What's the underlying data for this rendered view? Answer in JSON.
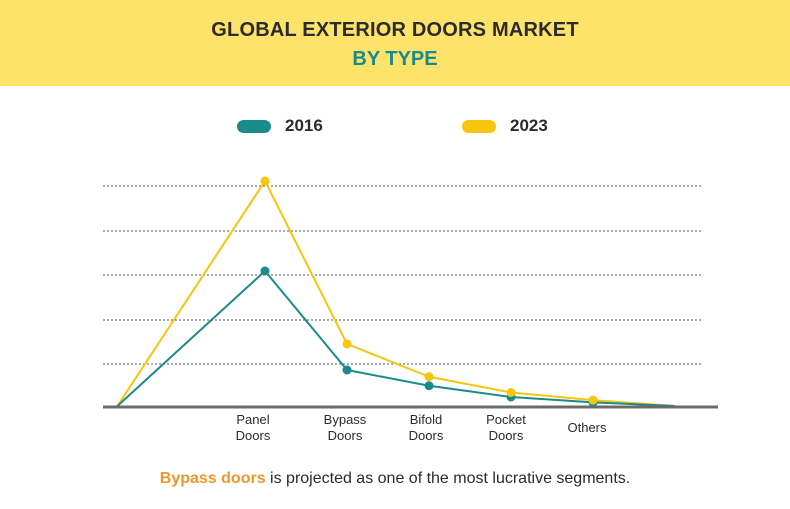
{
  "header": {
    "title": "GLOBAL EXTERIOR DOORS MARKET",
    "subtitle": "BY TYPE"
  },
  "legend": [
    {
      "label": "2016",
      "color": "#1a8a8a"
    },
    {
      "label": "2023",
      "color": "#f5c60d"
    }
  ],
  "footnote": {
    "highlight": "Bypass doors",
    "rest": " is projected as one of the most lucrative segments."
  },
  "chart_data": {
    "type": "line",
    "categories": [
      [
        "Panel",
        "Doors"
      ],
      [
        "Bypass",
        "Doors"
      ],
      [
        "Bifold",
        "Doors"
      ],
      [
        "Pocket",
        "Doors"
      ],
      [
        "Others"
      ]
    ],
    "x": [
      0,
      1,
      2,
      3,
      4
    ],
    "series": [
      {
        "name": "2016",
        "color": "#1a8a8a",
        "values": [
          30,
          8,
          4.5,
          2,
          0.8
        ]
      },
      {
        "name": "2023",
        "color": "#f5c60d",
        "values": [
          50,
          13.8,
          6.5,
          3,
          1.3
        ]
      }
    ],
    "line_start": {
      "x": -1.8,
      "y": 0
    },
    "line_end": {
      "x": 5,
      "y": 0
    },
    "ylim": [
      0,
      50
    ],
    "grid": true
  }
}
